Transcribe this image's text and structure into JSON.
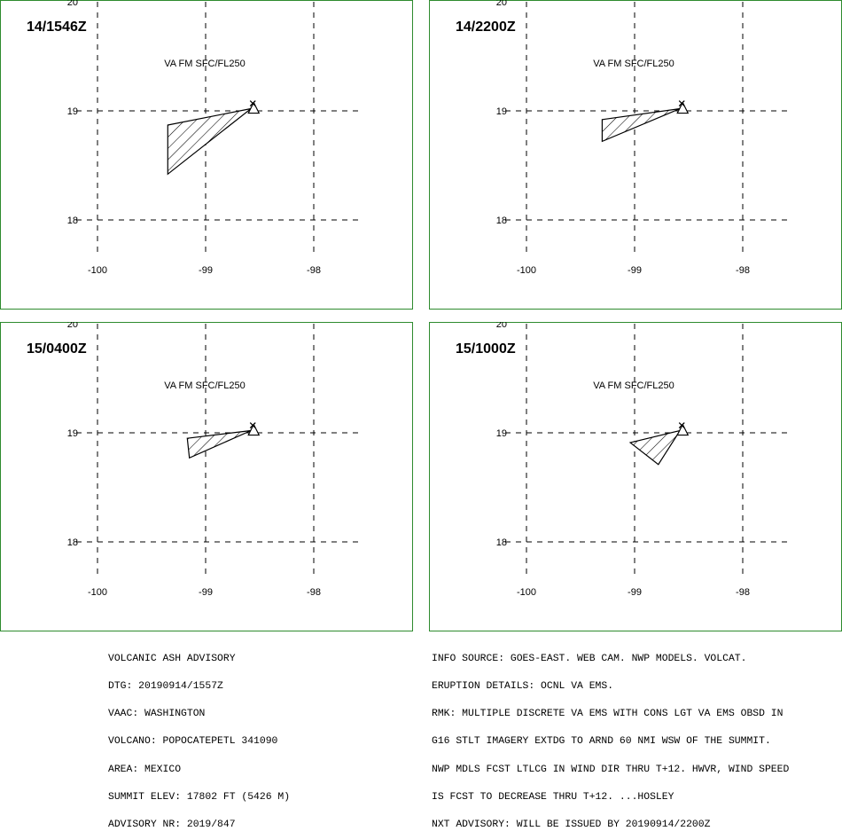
{
  "chart_data": [
    {
      "type": "map",
      "time_label": "14/1546Z",
      "level_label": "VA FM SFC/FL250",
      "xlim": [
        -100.5,
        -97.5
      ],
      "ylim": [
        17.55,
        20.0
      ],
      "x_ticks": [
        -100,
        -99,
        -98
      ],
      "y_ticks": [
        18,
        19,
        20
      ],
      "ash_polygon": [
        [
          -99.35,
          18.87
        ],
        [
          -98.58,
          19.02
        ],
        [
          -99.35,
          18.42
        ]
      ],
      "volcano": {
        "lon": -98.58,
        "lat": 19.02
      }
    },
    {
      "type": "map",
      "time_label": "14/2200Z",
      "level_label": "VA FM SFC/FL250",
      "xlim": [
        -100.5,
        -97.5
      ],
      "ylim": [
        17.55,
        20.0
      ],
      "x_ticks": [
        -100,
        -99,
        -98
      ],
      "y_ticks": [
        18,
        19,
        20
      ],
      "ash_polygon": [
        [
          -99.3,
          18.92
        ],
        [
          -98.58,
          19.02
        ],
        [
          -99.3,
          18.72
        ]
      ],
      "volcano": {
        "lon": -98.58,
        "lat": 19.02
      }
    },
    {
      "type": "map",
      "time_label": "15/0400Z",
      "level_label": "VA FM SFC/FL250",
      "xlim": [
        -100.5,
        -97.5
      ],
      "ylim": [
        17.55,
        20.0
      ],
      "x_ticks": [
        -100,
        -99,
        -98
      ],
      "y_ticks": [
        18,
        19,
        20
      ],
      "ash_polygon": [
        [
          -99.17,
          18.95
        ],
        [
          -98.58,
          19.02
        ],
        [
          -99.15,
          18.77
        ]
      ],
      "volcano": {
        "lon": -98.58,
        "lat": 19.02
      }
    },
    {
      "type": "map",
      "time_label": "15/1000Z",
      "level_label": "VA FM SFC/FL250",
      "xlim": [
        -100.5,
        -97.5
      ],
      "ylim": [
        17.55,
        20.0
      ],
      "x_ticks": [
        -100,
        -99,
        -98
      ],
      "y_ticks": [
        18,
        19,
        20
      ],
      "ash_polygon": [
        [
          -99.04,
          18.91
        ],
        [
          -98.58,
          19.02
        ],
        [
          -98.78,
          18.71
        ]
      ],
      "volcano": {
        "lon": -98.58,
        "lat": 19.02
      }
    }
  ],
  "advisory_left": [
    "VOLCANIC ASH ADVISORY",
    "DTG: 20190914/1557Z",
    "VAAC: WASHINGTON",
    "VOLCANO: POPOCATEPETL 341090",
    "AREA: MEXICO",
    "SUMMIT ELEV: 17802 FT (5426 M)",
    "ADVISORY NR: 2019/847"
  ],
  "advisory_right": [
    "INFO SOURCE: GOES-EAST. WEB CAM. NWP MODELS. VOLCAT.",
    "ERUPTION DETAILS: OCNL VA EMS.",
    "RMK: MULTIPLE DISCRETE VA EMS WITH CONS LGT VA EMS OBSD IN",
    "G16 STLT IMAGERY EXTDG TO ARND 60 NMI WSW OF THE SUMMIT.",
    "NWP MDLS FCST LTLCG IN WIND DIR THRU T+12. HWVR, WIND SPEED",
    "IS FCST TO DECREASE THRU T+12. ...HOSLEY",
    "NXT ADVISORY: WILL BE ISSUED BY 20190914/2200Z"
  ],
  "colors": {
    "frame": "#2e8b2e",
    "ink": "#000000",
    "background": "#ffffff"
  }
}
